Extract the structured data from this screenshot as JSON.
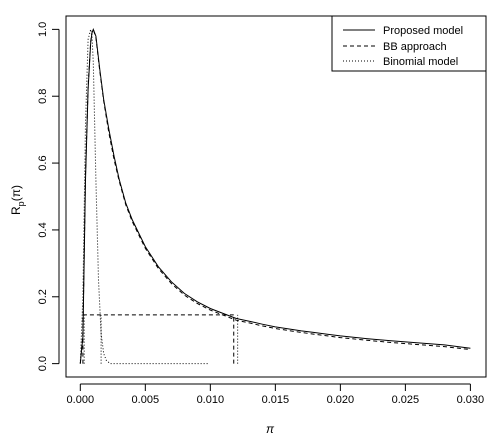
{
  "chart_data": {
    "type": "line",
    "title": "",
    "xlabel": "π",
    "ylabel_base": "R",
    "ylabel_sub": "p",
    "ylabel_tail": "(π)",
    "xlim": [
      -0.0011,
      0.0312
    ],
    "ylim": [
      -0.04,
      1.04
    ],
    "x_ticks": [
      0.0,
      0.005,
      0.01,
      0.015,
      0.02,
      0.025,
      0.03
    ],
    "x_tick_labels": [
      "0.000",
      "0.005",
      "0.010",
      "0.015",
      "0.020",
      "0.025",
      "0.030"
    ],
    "y_ticks": [
      0.0,
      0.2,
      0.4,
      0.6,
      0.8,
      1.0
    ],
    "y_tick_labels": [
      "0.0",
      "0.2",
      "0.4",
      "0.6",
      "0.8",
      "1.0"
    ],
    "grid": false,
    "legend": {
      "position": "top-right",
      "entries": [
        "Proposed model",
        "BB approach",
        "Binomial model"
      ]
    },
    "series": [
      {
        "name": "Proposed model",
        "style": "solid",
        "x": [
          0.0,
          0.0002,
          0.0004,
          0.0006,
          0.0008,
          0.0009,
          0.001,
          0.0012,
          0.0015,
          0.0018,
          0.0022,
          0.0026,
          0.003,
          0.0035,
          0.004,
          0.005,
          0.006,
          0.007,
          0.008,
          0.009,
          0.01,
          0.011,
          0.012,
          0.013,
          0.014,
          0.015,
          0.016,
          0.017,
          0.018,
          0.019,
          0.02,
          0.022,
          0.024,
          0.026,
          0.028,
          0.03
        ],
        "values": [
          0.0,
          0.08,
          0.55,
          0.82,
          0.96,
          0.99,
          1.0,
          0.98,
          0.88,
          0.79,
          0.7,
          0.62,
          0.55,
          0.48,
          0.43,
          0.35,
          0.29,
          0.245,
          0.21,
          0.185,
          0.165,
          0.15,
          0.135,
          0.127,
          0.118,
          0.11,
          0.104,
          0.098,
          0.093,
          0.088,
          0.083,
          0.075,
          0.068,
          0.062,
          0.056,
          0.046
        ]
      },
      {
        "name": "BB approach",
        "style": "dashed",
        "x": [
          0.0,
          0.0002,
          0.0004,
          0.0006,
          0.0008,
          0.0009,
          0.001,
          0.0012,
          0.0015,
          0.0018,
          0.0022,
          0.0026,
          0.003,
          0.0035,
          0.004,
          0.005,
          0.006,
          0.007,
          0.008,
          0.009,
          0.01,
          0.011,
          0.012,
          0.013,
          0.014,
          0.015,
          0.016,
          0.017,
          0.018,
          0.019,
          0.02,
          0.022,
          0.024,
          0.026,
          0.028,
          0.03
        ],
        "values": [
          0.0,
          0.09,
          0.57,
          0.83,
          0.965,
          0.99,
          1.0,
          0.975,
          0.875,
          0.785,
          0.69,
          0.61,
          0.545,
          0.475,
          0.425,
          0.345,
          0.285,
          0.24,
          0.205,
          0.18,
          0.16,
          0.145,
          0.13,
          0.122,
          0.113,
          0.105,
          0.099,
          0.093,
          0.088,
          0.083,
          0.078,
          0.07,
          0.063,
          0.057,
          0.051,
          0.042
        ]
      },
      {
        "name": "Binomial model",
        "style": "dotted",
        "x": [
          0.0,
          0.0002,
          0.0004,
          0.0006,
          0.0008,
          0.0009,
          0.001,
          0.0012,
          0.0014,
          0.0016,
          0.0018,
          0.002,
          0.0023,
          0.003,
          0.005,
          0.0075,
          0.0098
        ],
        "values": [
          0.0,
          0.2,
          0.72,
          0.97,
          1.0,
          0.98,
          0.9,
          0.55,
          0.25,
          0.09,
          0.03,
          0.01,
          0.0,
          0.0,
          0.0,
          0.0,
          0.0
        ]
      }
    ],
    "interval_segments": [
      {
        "style": "dashed",
        "x": [
          0.0002,
          0.0118
        ],
        "y": [
          0.146,
          0.146
        ]
      },
      {
        "style": "dashed",
        "x": [
          0.0118,
          0.0118
        ],
        "y": [
          0.0,
          0.146
        ]
      },
      {
        "style": "dashed",
        "x": [
          0.0002,
          0.0002
        ],
        "y": [
          0.0,
          0.146
        ]
      },
      {
        "style": "dotted",
        "x": [
          0.0121,
          0.0121
        ],
        "y": [
          0.0,
          0.146
        ]
      },
      {
        "style": "dotted",
        "x": [
          0.0016,
          0.0016
        ],
        "y": [
          0.0,
          0.146
        ]
      },
      {
        "style": "dotted",
        "x": [
          0.0003,
          0.0003
        ],
        "y": [
          0.0,
          0.146
        ]
      }
    ]
  }
}
